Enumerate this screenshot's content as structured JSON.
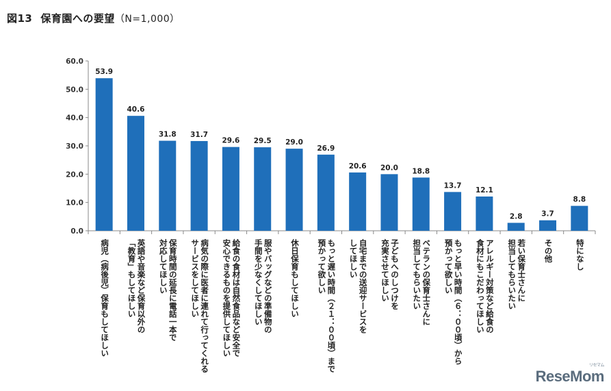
{
  "header": {
    "figure_number": "図13",
    "title": "保育園への要望",
    "sample": "（N=1,000）"
  },
  "watermark": {
    "text": "ReseMom",
    "sub": "リセマム"
  },
  "colors": {
    "bar": "#1f6fba",
    "axis": "#888888"
  },
  "chart_data": {
    "type": "bar",
    "title": "保育園への要望（N=1,000）",
    "xlabel": "",
    "ylabel": "",
    "ylim": [
      0,
      60
    ],
    "yticks": [
      "60.0",
      "50.0",
      "40.0",
      "30.0",
      "20.0",
      "10.0",
      "0.0"
    ],
    "grid": false,
    "categories": [
      [
        "病児（病後児）保育もしてほしい"
      ],
      [
        "英語や音楽など保育以外の",
        "「教育」もしてほしい"
      ],
      [
        "保育時間の延長に電話一本で",
        "対応してほしい"
      ],
      [
        "病気の際に医者に連れて行ってくれる",
        "サービスをしてほしい"
      ],
      [
        "給食の食材は自然食品など安全で",
        "安心できるものを提供してほしい"
      ],
      [
        "服やバッグなどの準備物の",
        "手間を少なくしてほしい"
      ],
      [
        "休日保育もしてほしい"
      ],
      [
        "もっと遅い時間（２１：００頃）まで",
        "預かって欲しい"
      ],
      [
        "自宅までの送迎サービスを",
        "してほしい"
      ],
      [
        "子どもへのしつけを",
        "充実させてほしい"
      ],
      [
        "ベテランの保育士さんに",
        "担当してもらいたい"
      ],
      [
        "もっと早い時間（６：００頃）から",
        "預かって欲しい"
      ],
      [
        "アレルギー対策など給食の",
        "食材にもこだわってほしい"
      ],
      [
        "若い保育士さんに",
        "担当してもらいたい"
      ],
      [
        "その他"
      ],
      [
        "特になし"
      ]
    ],
    "values": [
      53.9,
      40.6,
      31.8,
      31.7,
      29.6,
      29.5,
      29.0,
      26.9,
      20.6,
      20.0,
      18.8,
      13.7,
      12.1,
      2.8,
      3.7,
      8.8
    ],
    "value_labels": [
      "53.9",
      "40.6",
      "31.8",
      "31.7",
      "29.6",
      "29.5",
      "29.0",
      "26.9",
      "20.6",
      "20.0",
      "18.8",
      "13.7",
      "12.1",
      "2.8",
      "3.7",
      "8.8"
    ]
  }
}
